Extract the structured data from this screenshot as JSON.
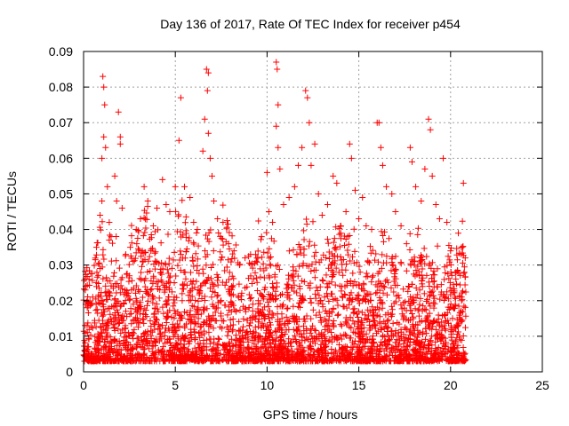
{
  "chart_data": {
    "type": "scatter",
    "title": "Day 136 of 2017, Rate Of TEC Index for receiver p454",
    "xlabel": "GPS time / hours",
    "ylabel": "ROTI / TECUs",
    "xlim": [
      0,
      25
    ],
    "ylim": [
      0,
      0.09
    ],
    "x_ticks": [
      0,
      5,
      10,
      15,
      20,
      25
    ],
    "y_ticks": [
      0,
      0.01,
      0.02,
      0.03,
      0.04,
      0.05,
      0.06,
      0.07,
      0.08,
      0.09
    ],
    "x_tick_labels": [
      "0",
      "5",
      "10",
      "15",
      "20",
      "25"
    ],
    "y_tick_labels": [
      "0",
      "0.01",
      "0.02",
      "0.03",
      "0.04",
      "0.05",
      "0.06",
      "0.07",
      "0.08",
      "0.09"
    ],
    "grid": true,
    "marker": "+",
    "marker_color": "#ff0000",
    "series": [
      {
        "points": [
          [
            0.1,
            0.023
          ],
          [
            0.2,
            0.018
          ],
          [
            0.3,
            0.026
          ],
          [
            0.5,
            0.021
          ],
          [
            0.7,
            0.035
          ],
          [
            0.9,
            0.044
          ],
          [
            1.0,
            0.048
          ],
          [
            1.0,
            0.06
          ],
          [
            1.05,
            0.083
          ],
          [
            1.1,
            0.08
          ],
          [
            1.15,
            0.075
          ],
          [
            1.1,
            0.066
          ],
          [
            1.2,
            0.063
          ],
          [
            1.3,
            0.052
          ],
          [
            1.4,
            0.042
          ],
          [
            1.5,
            0.038
          ],
          [
            1.7,
            0.055
          ],
          [
            1.8,
            0.048
          ],
          [
            1.9,
            0.073
          ],
          [
            2.0,
            0.064
          ],
          [
            2.0,
            0.066
          ],
          [
            2.1,
            0.046
          ],
          [
            2.3,
            0.033
          ],
          [
            2.5,
            0.027
          ],
          [
            2.7,
            0.031
          ],
          [
            2.9,
            0.036
          ],
          [
            3.1,
            0.043
          ],
          [
            3.3,
            0.052
          ],
          [
            3.5,
            0.048
          ],
          [
            3.8,
            0.041
          ],
          [
            4.0,
            0.046
          ],
          [
            4.3,
            0.054
          ],
          [
            4.5,
            0.047
          ],
          [
            4.7,
            0.045
          ],
          [
            5.0,
            0.052
          ],
          [
            5.3,
            0.077
          ],
          [
            5.2,
            0.065
          ],
          [
            5.5,
            0.052
          ],
          [
            5.8,
            0.049
          ],
          [
            6.0,
            0.042
          ],
          [
            6.2,
            0.04
          ],
          [
            6.5,
            0.062
          ],
          [
            6.6,
            0.071
          ],
          [
            6.7,
            0.085
          ],
          [
            6.8,
            0.084
          ],
          [
            6.75,
            0.079
          ],
          [
            6.8,
            0.067
          ],
          [
            6.9,
            0.06
          ],
          [
            7.0,
            0.055
          ],
          [
            7.1,
            0.048
          ],
          [
            7.3,
            0.043
          ],
          [
            7.6,
            0.042
          ],
          [
            7.9,
            0.036
          ],
          [
            8.2,
            0.034
          ],
          [
            8.5,
            0.03
          ],
          [
            8.8,
            0.032
          ],
          [
            9.1,
            0.033
          ],
          [
            9.4,
            0.031
          ],
          [
            9.7,
            0.038
          ],
          [
            10.0,
            0.056
          ],
          [
            10.1,
            0.045
          ],
          [
            10.3,
            0.042
          ],
          [
            10.5,
            0.087
          ],
          [
            10.55,
            0.085
          ],
          [
            10.6,
            0.075
          ],
          [
            10.5,
            0.069
          ],
          [
            10.6,
            0.063
          ],
          [
            10.7,
            0.057
          ],
          [
            10.9,
            0.047
          ],
          [
            11.2,
            0.049
          ],
          [
            11.5,
            0.052
          ],
          [
            11.7,
            0.058
          ],
          [
            11.9,
            0.063
          ],
          [
            12.1,
            0.079
          ],
          [
            12.2,
            0.077
          ],
          [
            12.3,
            0.07
          ],
          [
            12.4,
            0.058
          ],
          [
            12.6,
            0.064
          ],
          [
            12.8,
            0.05
          ],
          [
            13.0,
            0.044
          ],
          [
            13.3,
            0.047
          ],
          [
            13.6,
            0.055
          ],
          [
            13.8,
            0.053
          ],
          [
            14.0,
            0.041
          ],
          [
            14.3,
            0.045
          ],
          [
            14.5,
            0.064
          ],
          [
            14.6,
            0.06
          ],
          [
            14.8,
            0.051
          ],
          [
            15.0,
            0.043
          ],
          [
            15.2,
            0.049
          ],
          [
            15.4,
            0.041
          ],
          [
            15.7,
            0.04
          ],
          [
            16.0,
            0.07
          ],
          [
            16.1,
            0.07
          ],
          [
            16.2,
            0.063
          ],
          [
            16.3,
            0.058
          ],
          [
            16.5,
            0.052
          ],
          [
            16.8,
            0.05
          ],
          [
            17.0,
            0.045
          ],
          [
            17.3,
            0.041
          ],
          [
            17.6,
            0.036
          ],
          [
            17.8,
            0.063
          ],
          [
            17.9,
            0.059
          ],
          [
            18.1,
            0.052
          ],
          [
            18.4,
            0.048
          ],
          [
            18.6,
            0.057
          ],
          [
            18.8,
            0.071
          ],
          [
            18.9,
            0.068
          ],
          [
            19.0,
            0.055
          ],
          [
            19.2,
            0.047
          ],
          [
            19.4,
            0.043
          ],
          [
            19.6,
            0.06
          ],
          [
            19.8,
            0.042
          ],
          [
            20.0,
            0.034
          ],
          [
            20.3,
            0.028
          ],
          [
            20.6,
            0.02
          ],
          [
            20.7,
            0.053
          ],
          [
            20.8,
            0.032
          ],
          [
            20.75,
            0.028
          ]
        ]
      }
    ]
  }
}
